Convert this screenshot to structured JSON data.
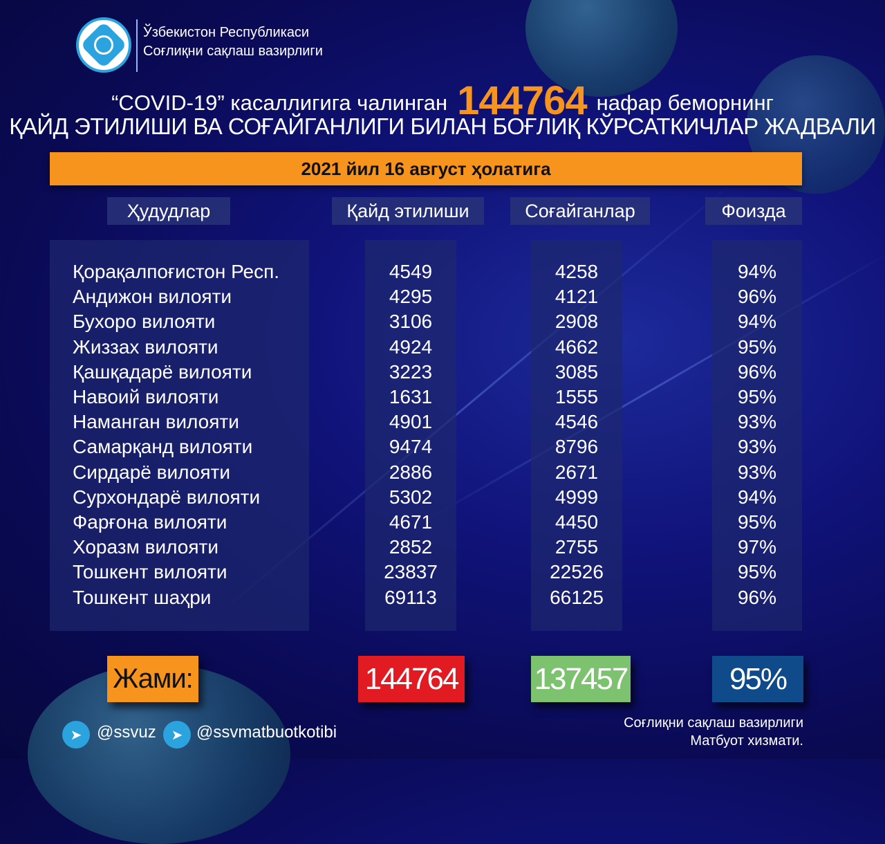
{
  "header": {
    "ministry_line1": "Ўзбекистон Республикаси",
    "ministry_line2": "Соғлиқни сақлаш вазирлиги"
  },
  "title": {
    "prefix": "“COVID-19” касаллигига чалинган",
    "total": "144764",
    "suffix": "нафар беморнинг",
    "line2": "ҚАЙД ЭТИЛИШИ ВА СОҒАЙГАНЛИГИ БИЛАН БОҒЛИҚ КЎРСАТКИЧЛАР ЖАДВАЛИ"
  },
  "date_label": "2021 йил 16 август ҳолатига",
  "columns": [
    "Ҳудудлар",
    "Қайд этилиши",
    "Соғайганлар",
    "Фоизда"
  ],
  "rows": [
    {
      "region": "Қорақалпоғистон Респ.",
      "registered": "4549",
      "recovered": "4258",
      "percent": "94%"
    },
    {
      "region": "Андижон вилояти",
      "registered": "4295",
      "recovered": "4121",
      "percent": "96%"
    },
    {
      "region": "Бухоро вилояти",
      "registered": "3106",
      "recovered": "2908",
      "percent": "94%"
    },
    {
      "region": "Жиззах вилояти",
      "registered": "4924",
      "recovered": "4662",
      "percent": "95%"
    },
    {
      "region": "Қашқадарё вилояти",
      "registered": "3223",
      "recovered": "3085",
      "percent": "96%"
    },
    {
      "region": "Навоий вилояти",
      "registered": "1631",
      "recovered": "1555",
      "percent": "95%"
    },
    {
      "region": "Наманган вилояти",
      "registered": "4901",
      "recovered": "4546",
      "percent": "93%"
    },
    {
      "region": "Самарқанд вилояти",
      "registered": "9474",
      "recovered": "8796",
      "percent": "93%"
    },
    {
      "region": "Сирдарё вилояти",
      "registered": "2886",
      "recovered": "2671",
      "percent": "93%"
    },
    {
      "region": "Сурхондарё вилояти",
      "registered": "5302",
      "recovered": "4999",
      "percent": "94%"
    },
    {
      "region": "Фарғона вилояти",
      "registered": "4671",
      "recovered": "4450",
      "percent": "95%"
    },
    {
      "region": "Хоразм вилояти",
      "registered": "2852",
      "recovered": "2755",
      "percent": "97%"
    },
    {
      "region": "Тошкент вилояти",
      "registered": "23837",
      "recovered": "22526",
      "percent": "95%"
    },
    {
      "region": "Тошкент шаҳри",
      "registered": "69113",
      "recovered": "66125",
      "percent": "96%"
    }
  ],
  "totals": {
    "label": "Жами:",
    "registered": "144764",
    "recovered": "137457",
    "percent": "95%"
  },
  "colors": {
    "background": "#0a0a55",
    "accent": "#f7941d",
    "registered_total": "#e21b23",
    "recovered_total": "#7dc26f",
    "percent_total": "#0f4a8a"
  },
  "footer": {
    "handle1": "@ssvuz",
    "handle2": "@ssvmatbuotkotibi",
    "credit_line1": "Соғлиқни сақлаш вазирлиги",
    "credit_line2": "Матбуот хизмати.",
    "icon": "telegram-icon"
  }
}
